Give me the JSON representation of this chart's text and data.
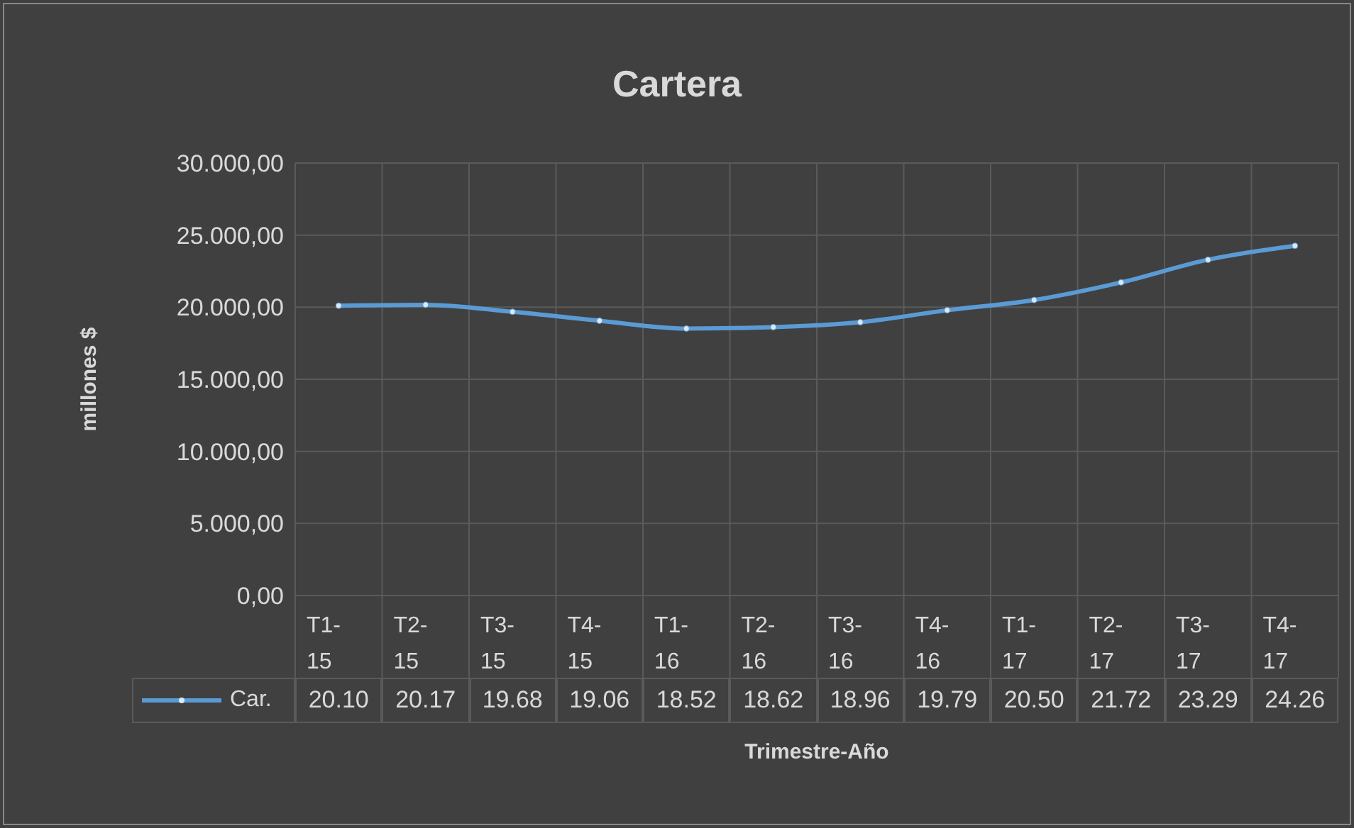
{
  "chart_data": {
    "type": "line",
    "title": "Cartera",
    "xlabel": "Trimestre-Año",
    "ylabel": "millones $",
    "categories": [
      "T1-15",
      "T2-15",
      "T3-15",
      "T4-15",
      "T1-16",
      "T2-16",
      "T3-16",
      "T4-16",
      "T1-17",
      "T2-17",
      "T3-17",
      "T4-17"
    ],
    "series": [
      {
        "name": "Car.",
        "color": "#5b9bd5",
        "values": [
          20100,
          20170,
          19680,
          19060,
          18520,
          18620,
          18960,
          19790,
          20500,
          21720,
          23290,
          24260
        ]
      }
    ],
    "annotations": [
      "20.10",
      "20.17",
      "19.68",
      "19.06",
      "18.52",
      "18.62",
      "18.96",
      "19.79",
      "20.50",
      "21.72",
      "23.29",
      "24.26"
    ],
    "ylim": [
      0,
      30000
    ],
    "yticks": [
      {
        "value": 0,
        "label": "0,00"
      },
      {
        "value": 5000,
        "label": "5.000,00"
      },
      {
        "value": 10000,
        "label": "10.000,00"
      },
      {
        "value": 15000,
        "label": "15.000,00"
      },
      {
        "value": 20000,
        "label": "20.000,00"
      },
      {
        "value": 25000,
        "label": "25.000,00"
      },
      {
        "value": 30000,
        "label": "30.000,00"
      }
    ],
    "grid": true,
    "legend": "bottom",
    "marker": "circle",
    "line_style": "solid"
  }
}
